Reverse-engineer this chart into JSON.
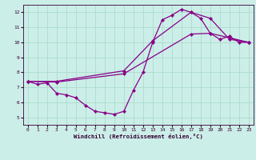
{
  "xlabel": "Windchill (Refroidissement éolien,°C)",
  "background_color": "#cceee8",
  "grid_color": "#aaddcc",
  "line_color": "#880088",
  "xlim": [
    -0.5,
    23.5
  ],
  "ylim": [
    4.5,
    12.5
  ],
  "xticks": [
    0,
    1,
    2,
    3,
    4,
    5,
    6,
    7,
    8,
    9,
    10,
    11,
    12,
    13,
    14,
    15,
    16,
    17,
    18,
    19,
    20,
    21,
    22,
    23
  ],
  "yticks": [
    5,
    6,
    7,
    8,
    9,
    10,
    11,
    12
  ],
  "line1_x": [
    0,
    1,
    2,
    3,
    4,
    5,
    6,
    7,
    8,
    9,
    10,
    11,
    12,
    13,
    14,
    15,
    16,
    17,
    18,
    19,
    20,
    21,
    22,
    23
  ],
  "line1_y": [
    7.4,
    7.2,
    7.3,
    6.6,
    6.5,
    6.3,
    5.8,
    5.4,
    5.3,
    5.2,
    5.4,
    6.8,
    8.0,
    10.0,
    11.5,
    11.8,
    12.2,
    12.0,
    11.6,
    10.6,
    10.2,
    10.4,
    10.0,
    10.0
  ],
  "line2_x": [
    0,
    3,
    10,
    13,
    17,
    19,
    21,
    23
  ],
  "line2_y": [
    7.4,
    7.4,
    8.1,
    10.1,
    12.0,
    11.6,
    10.2,
    10.0
  ],
  "line3_x": [
    0,
    3,
    10,
    17,
    19,
    21,
    23
  ],
  "line3_y": [
    7.4,
    7.35,
    7.9,
    10.55,
    10.6,
    10.3,
    10.0
  ]
}
